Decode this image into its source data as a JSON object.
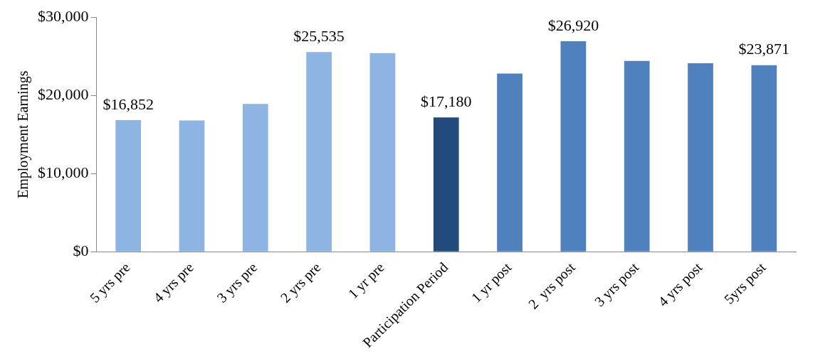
{
  "chart_data": {
    "type": "bar",
    "ylabel": "Employment Earnings",
    "categories": [
      "5 yrs pre",
      "4 yrs pre",
      "3 yrs pre",
      "2 yrs pre",
      "1 yr pre",
      "Participation Period",
      "1 yr post",
      "2  yrs post",
      "3 yrs post",
      "4 yrs post",
      "5yrs post"
    ],
    "values": [
      16852,
      16800,
      18900,
      25535,
      25400,
      17180,
      22800,
      26920,
      24400,
      24100,
      23871
    ],
    "colors": [
      "#8eb4e3",
      "#8eb4e3",
      "#8eb4e3",
      "#8eb4e3",
      "#8eb4e3",
      "#234a7d",
      "#4f81bd",
      "#4f81bd",
      "#4f81bd",
      "#4f81bd",
      "#4f81bd"
    ],
    "value_labels": [
      "$16,852",
      null,
      null,
      "$25,535",
      null,
      "$17,180",
      null,
      "$26,920",
      null,
      null,
      "$23,871"
    ],
    "ylim": [
      0,
      30000
    ],
    "yticks": [
      {
        "value": 0,
        "label": "$0"
      },
      {
        "value": 10000,
        "label": "$10,000"
      },
      {
        "value": 20000,
        "label": "$20,000"
      },
      {
        "value": 30000,
        "label": "$30,000"
      }
    ],
    "grid": false,
    "legend": false
  }
}
